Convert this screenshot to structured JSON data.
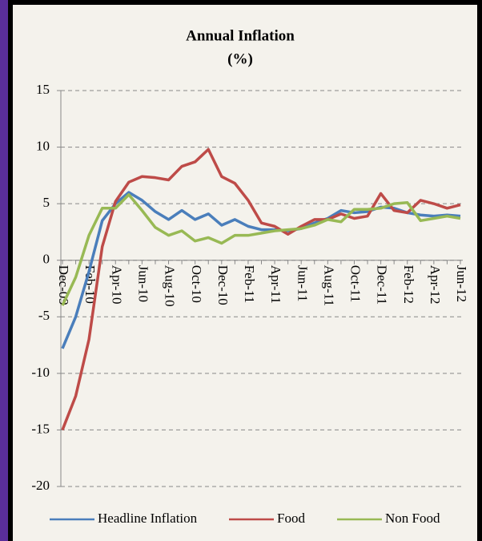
{
  "chart_data": {
    "type": "line",
    "title": "Annual Inflation",
    "subtitle": "(%)",
    "categories": [
      "Dec-09",
      null,
      "Feb-10",
      null,
      "Apr-10",
      null,
      "Jun-10",
      null,
      "Aug-10",
      null,
      "Oct-10",
      null,
      "Dec-10",
      null,
      "Feb-11",
      null,
      "Apr-11",
      null,
      "Jun-11",
      null,
      "Aug-11",
      null,
      "Oct-11",
      null,
      "Dec-11",
      null,
      "Feb-12",
      null,
      "Apr-12",
      null,
      "Jun-12"
    ],
    "series": [
      {
        "name": "Headline Inflation",
        "color": "#4a7ebb",
        "values": [
          -7.8,
          -5,
          -1,
          3.5,
          5,
          6,
          5.3,
          4.3,
          3.6,
          4.4,
          3.6,
          4.1,
          3.1,
          3.6,
          3.0,
          2.7,
          2.7,
          2.6,
          2.8,
          3.3,
          3.7,
          4.4,
          4.2,
          4.3,
          4.7,
          4.6,
          4.2,
          4.0,
          3.9,
          4.0,
          3.9
        ]
      },
      {
        "name": "Food",
        "color": "#be4b48",
        "values": [
          -15,
          -12,
          -7,
          1.2,
          5.2,
          6.9,
          7.4,
          7.3,
          7.1,
          8.3,
          8.7,
          9.8,
          7.4,
          6.8,
          5.3,
          3.3,
          3.0,
          2.3,
          3.0,
          3.6,
          3.6,
          4.1,
          3.7,
          3.9,
          5.9,
          4.4,
          4.2,
          5.3,
          5.0,
          4.6,
          4.9
        ]
      },
      {
        "name": "Non Food",
        "color": "#98b954",
        "values": [
          -4,
          -1.5,
          2.2,
          4.6,
          4.6,
          5.8,
          4.4,
          2.9,
          2.2,
          2.6,
          1.7,
          2.0,
          1.5,
          2.2,
          2.2,
          2.4,
          2.6,
          2.7,
          2.8,
          3.1,
          3.6,
          3.4,
          4.5,
          4.5,
          4.6,
          5.0,
          5.1,
          3.5,
          3.7,
          3.9,
          3.7
        ]
      }
    ],
    "ylim": [
      -20,
      15
    ],
    "yticks": [
      -20,
      -15,
      -10,
      -5,
      0,
      5,
      10,
      15
    ],
    "grid": true,
    "legend": "bottom"
  }
}
